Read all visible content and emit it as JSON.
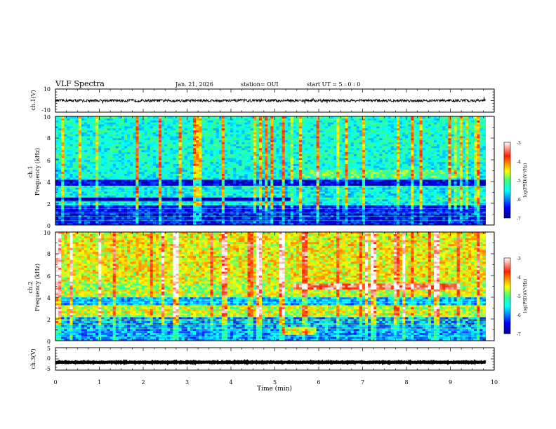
{
  "header": {
    "title": "VLF Spectra",
    "date": "Jan. 21, 2026",
    "station": "station= OUI",
    "start": "start  UT =   5 : 0  : 0"
  },
  "panels": {
    "ch1_wave": {
      "ylabel": "ch.1(V)",
      "ticks": [
        "10",
        "-10"
      ]
    },
    "spec1": {
      "ylabel": "Frequency (kHz)",
      "channel": "ch.1",
      "ticks": [
        "0",
        "2",
        "4",
        "6",
        "8",
        "10"
      ]
    },
    "spec2": {
      "ylabel": "Frequency (kHz)",
      "channel": "ch.2",
      "ticks": [
        "0",
        "2",
        "4",
        "6",
        "8",
        "10"
      ]
    },
    "ch3_wave": {
      "ylabel": "ch.3(V)",
      "ticks": [
        "5",
        "0",
        "-5"
      ]
    }
  },
  "xaxis": {
    "label": "Time (min)",
    "ticks": [
      "0",
      "1",
      "2",
      "3",
      "4",
      "5",
      "6",
      "7",
      "8",
      "9",
      "10"
    ]
  },
  "colorbar": {
    "label": "log(PSD)(V²/Hz)",
    "ticks": [
      "-3",
      "-4",
      "-5",
      "-6",
      "-7"
    ]
  },
  "chart_data": {
    "type": "heatmap",
    "title": "VLF Spectra",
    "xlabel": "Time (min)",
    "xlim": [
      0,
      10
    ],
    "data_end_min": 9.8,
    "color_scale": {
      "range": [
        -7,
        -3
      ],
      "label": "log(PSD)(V²/Hz)"
    },
    "channels": [
      {
        "name": "ch.1",
        "ylabel": "Frequency (kHz)",
        "ylim": [
          0,
          10
        ],
        "background_logpsd": -5.6,
        "features": [
          {
            "kind": "band",
            "f_lo": 3.6,
            "f_hi": 4.2,
            "t_start": 0,
            "t_end": 9.8,
            "logpsd": -6.6
          },
          {
            "kind": "band",
            "f_lo": 2.2,
            "f_hi": 2.6,
            "t_start": 0,
            "t_end": 5.3,
            "logpsd": -6.8
          },
          {
            "kind": "band",
            "f_lo": 4.4,
            "f_hi": 5.0,
            "t_start": 5.3,
            "t_end": 9.2,
            "logpsd": -5.0
          },
          {
            "kind": "band",
            "f_lo": 2.3,
            "f_hi": 2.6,
            "t_start": 5.3,
            "t_end": 9.8,
            "logpsd": -5.3
          },
          {
            "kind": "band",
            "f_lo": 0.0,
            "f_hi": 1.8,
            "t_start": 0,
            "t_end": 9.8,
            "logpsd": -6.4
          },
          {
            "kind": "band",
            "f_lo": 6.0,
            "f_hi": 9.8,
            "t_start": 0,
            "t_end": 9.8,
            "logpsd": -5.4
          }
        ]
      },
      {
        "name": "ch.2",
        "ylabel": "Frequency (kHz)",
        "ylim": [
          0,
          10
        ],
        "background_logpsd": -4.9,
        "features": [
          {
            "kind": "band",
            "f_lo": 6.0,
            "f_hi": 10.0,
            "t_start": 0,
            "t_end": 9.8,
            "logpsd": -4.5
          },
          {
            "kind": "band",
            "f_lo": 4.8,
            "f_hi": 5.2,
            "t_start": 0,
            "t_end": 5.1,
            "logpsd": -4.8
          },
          {
            "kind": "band",
            "f_lo": 4.7,
            "f_hi": 5.3,
            "t_start": 5.4,
            "t_end": 9.2,
            "logpsd": -3.5
          },
          {
            "kind": "band",
            "f_lo": 2.4,
            "f_hi": 2.9,
            "t_start": 0,
            "t_end": 9.2,
            "logpsd": -4.6
          },
          {
            "kind": "band",
            "f_lo": 3.3,
            "f_hi": 4.0,
            "t_start": 0,
            "t_end": 9.8,
            "logpsd": -5.8
          },
          {
            "kind": "band",
            "f_lo": 0.0,
            "f_hi": 2.2,
            "t_start": 0,
            "t_end": 9.8,
            "logpsd": -5.9
          },
          {
            "kind": "band",
            "f_lo": 0.6,
            "f_hi": 1.3,
            "t_start": 5.1,
            "t_end": 5.9,
            "logpsd": -4.6
          }
        ]
      }
    ],
    "waveforms": [
      {
        "name": "ch.1(V)",
        "ylim": [
          -10,
          10
        ],
        "level": 0,
        "amplitude": 1.2
      },
      {
        "name": "ch.3(V)",
        "ylim": [
          -5,
          5
        ],
        "level": -1.5,
        "amplitude": 0.15
      }
    ]
  }
}
